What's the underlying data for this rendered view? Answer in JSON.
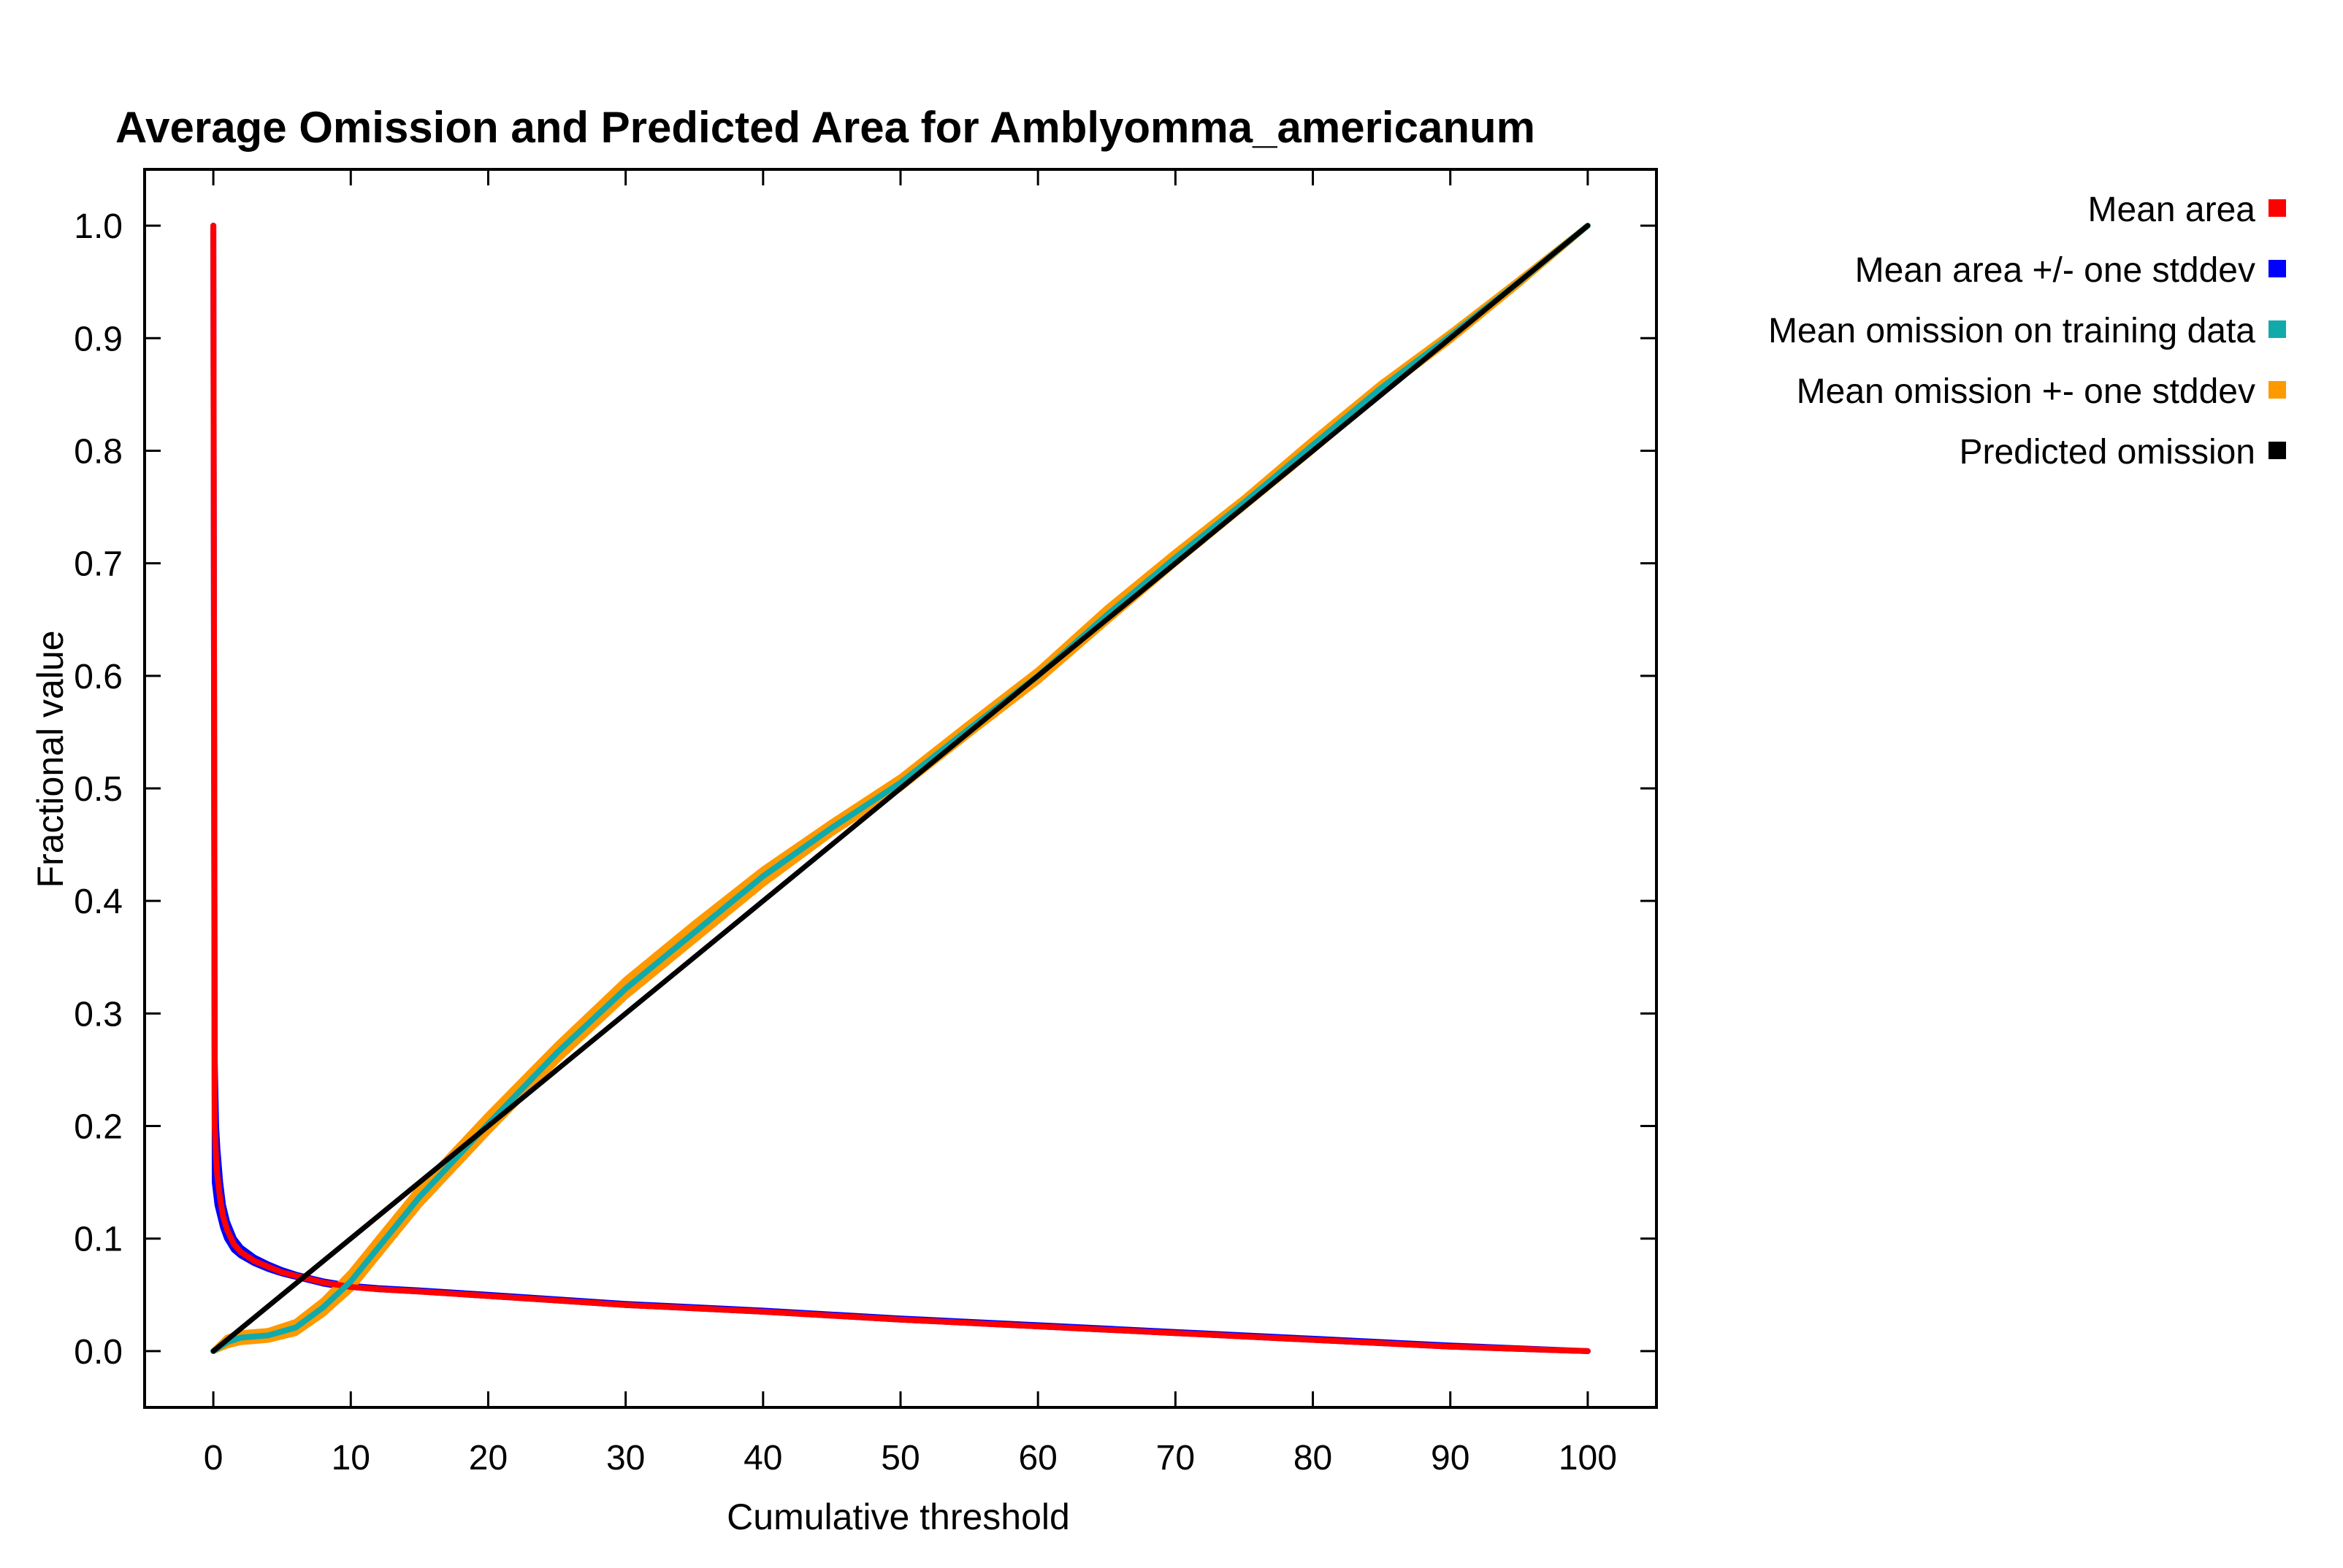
{
  "chart_data": {
    "type": "line",
    "title": "Average Omission and Predicted Area for Amblyomma_americanum",
    "xlabel": "Cumulative threshold",
    "ylabel": "Fractional value",
    "xlim": [
      -5,
      105
    ],
    "ylim": [
      -0.05,
      1.05
    ],
    "x_ticks": [
      "0",
      "10",
      "20",
      "30",
      "40",
      "50",
      "60",
      "70",
      "80",
      "90",
      "100"
    ],
    "y_ticks": [
      "0.0",
      "0.1",
      "0.2",
      "0.3",
      "0.4",
      "0.5",
      "0.6",
      "0.7",
      "0.8",
      "0.9",
      "1.0"
    ],
    "grid": false,
    "legend_position": "right",
    "series": [
      {
        "name": "Mean area +/- one stddev",
        "role": "band",
        "color": "#0000ff",
        "x": [
          0,
          0.1,
          0.2,
          0.3,
          0.5,
          0.7,
          1,
          1.5,
          2,
          3,
          4,
          5,
          6,
          7,
          8,
          9,
          10,
          12,
          15,
          20,
          25,
          30,
          40,
          50,
          60,
          70,
          80,
          90,
          100
        ],
        "upper": [
          1.0,
          0.26,
          0.2,
          0.18,
          0.15,
          0.13,
          0.115,
          0.1,
          0.092,
          0.083,
          0.077,
          0.072,
          0.068,
          0.065,
          0.062,
          0.06,
          0.058,
          0.056,
          0.054,
          0.05,
          0.046,
          0.042,
          0.036,
          0.029,
          0.023,
          0.017,
          0.011,
          0.005,
          0.0
        ],
        "lower": [
          1.0,
          0.15,
          0.14,
          0.13,
          0.12,
          0.11,
          0.1,
          0.09,
          0.085,
          0.078,
          0.073,
          0.069,
          0.066,
          0.063,
          0.06,
          0.058,
          0.057,
          0.055,
          0.053,
          0.049,
          0.045,
          0.041,
          0.035,
          0.028,
          0.022,
          0.016,
          0.01,
          0.004,
          0.0
        ]
      },
      {
        "name": "Mean area",
        "role": "line",
        "color": "#ff0000",
        "x": [
          0,
          0.1,
          0.2,
          0.3,
          0.5,
          0.7,
          1,
          1.5,
          2,
          3,
          4,
          5,
          6,
          7,
          8,
          9,
          10,
          12,
          15,
          20,
          25,
          30,
          40,
          50,
          60,
          70,
          80,
          90,
          100
        ],
        "y": [
          1.0,
          0.2,
          0.17,
          0.155,
          0.135,
          0.12,
          0.108,
          0.095,
          0.088,
          0.08,
          0.075,
          0.07,
          0.067,
          0.064,
          0.061,
          0.059,
          0.057,
          0.055,
          0.053,
          0.049,
          0.045,
          0.041,
          0.035,
          0.028,
          0.022,
          0.016,
          0.01,
          0.004,
          0.0
        ]
      },
      {
        "name": "Mean omission +- one stddev",
        "role": "band",
        "color": "#ff9900",
        "x": [
          0,
          1,
          2,
          4,
          6,
          8,
          10,
          12,
          15,
          20,
          25,
          30,
          35,
          40,
          45,
          50,
          55,
          60,
          65,
          70,
          75,
          80,
          85,
          90,
          95,
          100
        ],
        "upper": [
          0.0,
          0.012,
          0.016,
          0.018,
          0.026,
          0.045,
          0.07,
          0.1,
          0.145,
          0.21,
          0.272,
          0.33,
          0.38,
          0.428,
          0.47,
          0.51,
          0.558,
          0.605,
          0.66,
          0.71,
          0.758,
          0.81,
          0.86,
          0.905,
          0.952,
          1.0
        ],
        "lower": [
          0.0,
          0.005,
          0.008,
          0.01,
          0.016,
          0.033,
          0.055,
          0.085,
          0.13,
          0.195,
          0.258,
          0.315,
          0.365,
          0.415,
          0.46,
          0.5,
          0.548,
          0.595,
          0.648,
          0.7,
          0.75,
          0.8,
          0.852,
          0.898,
          0.948,
          1.0
        ]
      },
      {
        "name": "Mean omission on training data",
        "role": "line",
        "color": "#11aaaa",
        "x": [
          0,
          1,
          2,
          4,
          6,
          8,
          10,
          12,
          15,
          20,
          25,
          30,
          35,
          40,
          45,
          50,
          55,
          60,
          65,
          70,
          75,
          80,
          85,
          90,
          95,
          100
        ],
        "y": [
          0.0,
          0.008,
          0.012,
          0.014,
          0.021,
          0.039,
          0.062,
          0.092,
          0.137,
          0.202,
          0.265,
          0.322,
          0.372,
          0.422,
          0.465,
          0.505,
          0.553,
          0.6,
          0.654,
          0.705,
          0.754,
          0.805,
          0.856,
          0.902,
          0.95,
          1.0
        ]
      },
      {
        "name": "Predicted omission",
        "role": "line",
        "color": "#000000",
        "x": [
          0,
          100
        ],
        "y": [
          0.0,
          1.0
        ]
      }
    ],
    "legend": [
      {
        "label": "Mean area",
        "color": "#ff0000"
      },
      {
        "label": "Mean area +/- one stddev",
        "color": "#0000ff"
      },
      {
        "label": "Mean omission on training data",
        "color": "#11aaaa"
      },
      {
        "label": "Mean omission +- one stddev",
        "color": "#ff9900"
      },
      {
        "label": "Predicted omission",
        "color": "#000000"
      }
    ]
  }
}
